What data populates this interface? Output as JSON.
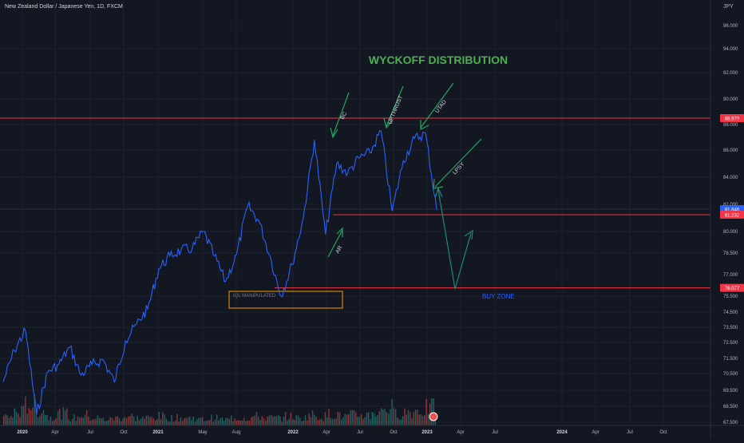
{
  "header": {
    "symbol_title": "New Zealand Dollar / Japanese Yen, 1D, FXCM",
    "currency": "JPY"
  },
  "colors": {
    "background": "#131722",
    "grid": "#1e222d",
    "price_line": "#2962ff",
    "annotation_green": "#26a65b",
    "title_green": "#4caf50",
    "level_red": "#f23645",
    "buy_zone_blue": "#2962ff",
    "arrow_teal": "#1b8a7a",
    "volume_up": "#26a69a",
    "volume_down": "#ef5350",
    "box_orange": "#ff9800"
  },
  "chart_data": {
    "type": "line",
    "title": "WYCKOFF DISTRIBUTION",
    "ylabel": "JPY",
    "ylim": [
      67.5,
      97.0
    ],
    "x_ticks": [
      "2020",
      "Apr",
      "Jul",
      "Oct",
      "2021",
      "May",
      "Aug",
      "2022",
      "Apr",
      "Jul",
      "Oct",
      "2023",
      "Apr",
      "Jul",
      "2024",
      "Apr",
      "Jul",
      "Oct"
    ],
    "y_ticks": [
      "96.000",
      "94.000",
      "92.000",
      "90.000",
      "88.000",
      "86.000",
      "84.000",
      "82.000",
      "80.000",
      "78.500",
      "77.000",
      "75.500",
      "74.500",
      "73.500",
      "72.500",
      "71.500",
      "70.500",
      "69.500",
      "68.500",
      "67.500"
    ],
    "series": [
      {
        "x": [
          "2020-01",
          "2020-02",
          "2020-03",
          "2020-03b",
          "2020-04",
          "2020-05",
          "2020-06",
          "2020-07",
          "2020-08",
          "2020-09",
          "2020-10",
          "2020-11",
          "2020-12",
          "2021-01",
          "2021-02",
          "2021-03",
          "2021-04",
          "2021-05",
          "2021-06",
          "2021-07",
          "2021-08",
          "2021-09",
          "2021-10",
          "2021-11",
          "2021-12",
          "2022-01",
          "2022-02",
          "2022-03",
          "2022-04",
          "2022-04b",
          "2022-05",
          "2022-06",
          "2022-07",
          "2022-08",
          "2022-09",
          "2022-10",
          "2022-10b",
          "2022-11",
          "2022-12",
          "2023-01"
        ],
        "values": [
          70.0,
          72.0,
          73.3,
          68.0,
          70.6,
          71.1,
          72.2,
          70.4,
          71.1,
          71.4,
          70.0,
          72.6,
          73.7,
          74.7,
          77.4,
          78.3,
          78.7,
          78.8,
          80.0,
          78.3,
          76.5,
          78.4,
          81.9,
          80.8,
          78.3,
          75.5,
          77.7,
          81.0,
          86.8,
          79.8,
          85.0,
          84.3,
          85.4,
          85.8,
          87.5,
          81.5,
          85.2,
          86.9,
          87.3,
          81.6
        ]
      }
    ],
    "volume": {
      "values": [
        6,
        9,
        14,
        10,
        6,
        8,
        5,
        7,
        5,
        4,
        5,
        6,
        5,
        5,
        6,
        5,
        5,
        5,
        4,
        5,
        4,
        5,
        5,
        6,
        5,
        5,
        6,
        5,
        7,
        6,
        8,
        6,
        7,
        7,
        9,
        12,
        8,
        9,
        10,
        12
      ]
    },
    "levels": [
      {
        "value": 88.5,
        "label": "88.5??"
      },
      {
        "value": 81.646,
        "label": "81.646"
      },
      {
        "value": 81.232,
        "label": "81.232"
      },
      {
        "value": 76.077,
        "label": "76.077"
      }
    ],
    "annotations": {
      "bc": "BC",
      "upthrust": "UPTHRUST",
      "utad": "UTAD",
      "lpsy": "LPSY",
      "ar": "AR",
      "buy_zone": "BUY ZONE",
      "box_label": "IQL MANIPULATED"
    },
    "grid": true
  }
}
